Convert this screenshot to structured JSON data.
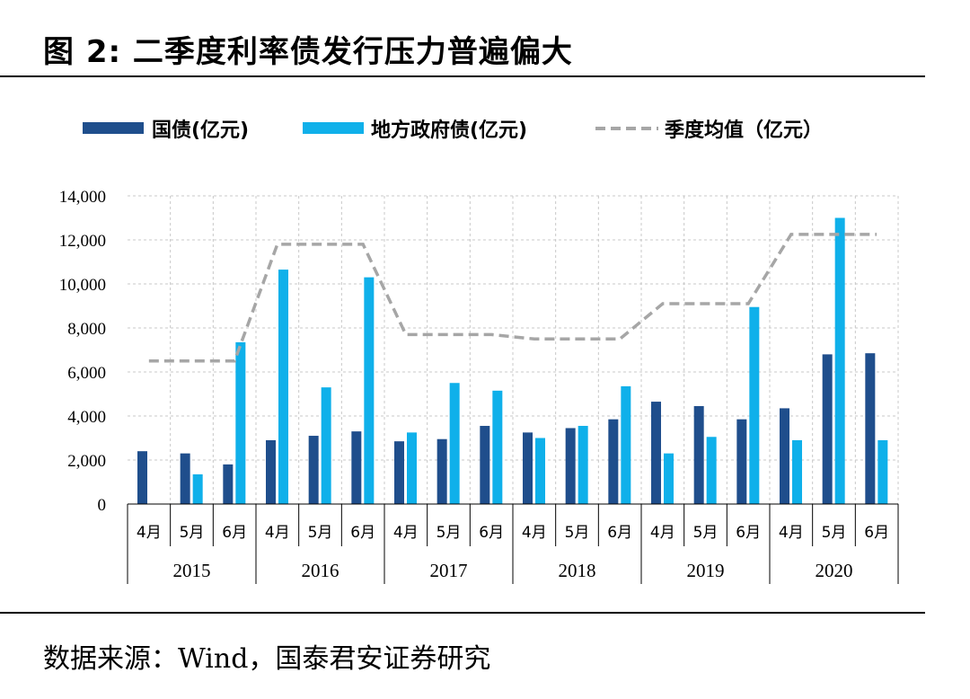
{
  "header": {
    "title": "图 2:  二季度利率债发行压力普遍偏大"
  },
  "footer": {
    "source": "数据来源：Wind，国泰君安证券研究"
  },
  "colors": {
    "guozhai": "#1f4e8c",
    "difang": "#0fb0ea",
    "avg": "#a6a6a6"
  },
  "chart_data": {
    "type": "bar",
    "title": "二季度利率债发行压力普遍偏大",
    "xlabel": "",
    "ylabel": "",
    "ylim": [
      0,
      14000
    ],
    "yticks": [
      0,
      2000,
      4000,
      6000,
      8000,
      10000,
      12000,
      14000
    ],
    "ytick_labels": [
      "0",
      "2,000",
      "4,000",
      "6,000",
      "8,000",
      "10,000",
      "12,000",
      "14,000"
    ],
    "grid": true,
    "legend_position": "top",
    "years": [
      "2015",
      "2016",
      "2017",
      "2018",
      "2019",
      "2020"
    ],
    "months": [
      "4月",
      "5月",
      "6月"
    ],
    "categories": [
      "4月",
      "5月",
      "6月",
      "4月",
      "5月",
      "6月",
      "4月",
      "5月",
      "6月",
      "4月",
      "5月",
      "6月",
      "4月",
      "5月",
      "6月",
      "4月",
      "5月",
      "6月"
    ],
    "series": [
      {
        "name": "国债(亿元)",
        "type": "bar",
        "values": [
          2400,
          2300,
          1800,
          2900,
          3100,
          3300,
          2850,
          2950,
          3550,
          3250,
          3450,
          3850,
          4650,
          4450,
          3850,
          4350,
          6800,
          6850
        ]
      },
      {
        "name": "地方政府债(亿元)",
        "type": "bar",
        "values": [
          0,
          1350,
          7350,
          10650,
          5300,
          10300,
          3250,
          5500,
          5150,
          3000,
          3550,
          5350,
          2300,
          3050,
          8950,
          2900,
          13000,
          2900
        ]
      },
      {
        "name": "季度均值（亿元）",
        "type": "line-dashed",
        "values": [
          6500,
          6500,
          6500,
          11800,
          11800,
          11800,
          7700,
          7700,
          7700,
          7500,
          7500,
          7500,
          9100,
          9100,
          9100,
          12250,
          12250,
          12250
        ]
      }
    ]
  }
}
